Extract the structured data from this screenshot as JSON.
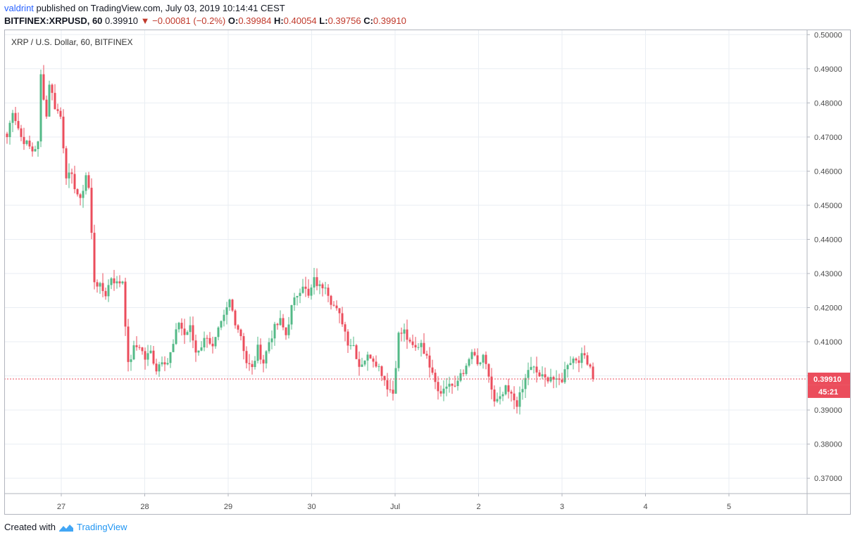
{
  "header": {
    "author": "valdrint",
    "published": "published on TradingView.com, July 03, 2019 10:14:41 CEST"
  },
  "ticker": {
    "symbol": "BITFINEX:XRPUSD, 60",
    "last": "0.39910",
    "change": "−0.00081 (−0.2%)",
    "o_label": "O:",
    "o": "0.39984",
    "h_label": "H:",
    "h": "0.40054",
    "l_label": "L:",
    "l": "0.39756",
    "c_label": "C:",
    "c": "0.39910"
  },
  "footer": {
    "created": "Created with",
    "brand": "TradingView"
  },
  "colors": {
    "up": "#53b987",
    "down": "#eb4d5c",
    "grid": "#e9eef3",
    "axis_text": "#4a4a4a",
    "price_tag": "#eb4d5c"
  },
  "chart_data": {
    "type": "candlestick",
    "title": "XRP / U.S. Dollar, 60, BITFINEX",
    "x_ticks": [
      "27",
      "28",
      "29",
      "30",
      "Jul",
      "2",
      "3",
      "4",
      "5"
    ],
    "y_ticks": [
      "0.37000",
      "0.38000",
      "0.39000",
      "0.40000",
      "0.41000",
      "0.42000",
      "0.43000",
      "0.44000",
      "0.45000",
      "0.46000",
      "0.47000",
      "0.48000",
      "0.49000",
      "0.50000"
    ],
    "ylim": [
      0.3655,
      0.5015
    ],
    "last_price": {
      "value": 0.3991,
      "label": "0.39910",
      "countdown": "45:21"
    },
    "grid": true,
    "anchors": [
      [
        0,
        0.47
      ],
      [
        2,
        0.478
      ],
      [
        5,
        0.47
      ],
      [
        7,
        0.468
      ],
      [
        9,
        0.466
      ],
      [
        11,
        0.468
      ],
      [
        12,
        0.488
      ],
      [
        14,
        0.476
      ],
      [
        15,
        0.486
      ],
      [
        17,
        0.479
      ],
      [
        19,
        0.476
      ],
      [
        21,
        0.459
      ],
      [
        23,
        0.458
      ],
      [
        26,
        0.451
      ],
      [
        28,
        0.459
      ],
      [
        29,
        0.455
      ],
      [
        31,
        0.428
      ],
      [
        33,
        0.426
      ],
      [
        35,
        0.424
      ],
      [
        37,
        0.429
      ],
      [
        39,
        0.427
      ],
      [
        41,
        0.428
      ],
      [
        43,
        0.403
      ],
      [
        45,
        0.408
      ],
      [
        47,
        0.409
      ],
      [
        49,
        0.405
      ],
      [
        51,
        0.407
      ],
      [
        53,
        0.402
      ],
      [
        55,
        0.405
      ],
      [
        57,
        0.404
      ],
      [
        59,
        0.409
      ],
      [
        61,
        0.416
      ],
      [
        63,
        0.412
      ],
      [
        65,
        0.414
      ],
      [
        67,
        0.407
      ],
      [
        69,
        0.409
      ],
      [
        71,
        0.412
      ],
      [
        73,
        0.408
      ],
      [
        75,
        0.413
      ],
      [
        77,
        0.417
      ],
      [
        79,
        0.422
      ],
      [
        81,
        0.416
      ],
      [
        83,
        0.412
      ],
      [
        85,
        0.404
      ],
      [
        87,
        0.402
      ],
      [
        89,
        0.408
      ],
      [
        91,
        0.404
      ],
      [
        93,
        0.41
      ],
      [
        95,
        0.414
      ],
      [
        97,
        0.416
      ],
      [
        99,
        0.412
      ],
      [
        101,
        0.42
      ],
      [
        103,
        0.424
      ],
      [
        105,
        0.427
      ],
      [
        107,
        0.423
      ],
      [
        109,
        0.428
      ],
      [
        111,
        0.426
      ],
      [
        113,
        0.427
      ],
      [
        115,
        0.422
      ],
      [
        117,
        0.419
      ],
      [
        119,
        0.416
      ],
      [
        121,
        0.41
      ],
      [
        123,
        0.409
      ],
      [
        125,
        0.403
      ],
      [
        127,
        0.405
      ],
      [
        129,
        0.406
      ],
      [
        131,
        0.404
      ],
      [
        133,
        0.401
      ],
      [
        135,
        0.397
      ],
      [
        137,
        0.395
      ],
      [
        139,
        0.412
      ],
      [
        141,
        0.413
      ],
      [
        143,
        0.409
      ],
      [
        145,
        0.408
      ],
      [
        147,
        0.41
      ],
      [
        149,
        0.405
      ],
      [
        151,
        0.402
      ],
      [
        153,
        0.396
      ],
      [
        155,
        0.396
      ],
      [
        157,
        0.398
      ],
      [
        159,
        0.396
      ],
      [
        161,
        0.401
      ],
      [
        163,
        0.402
      ],
      [
        165,
        0.407
      ],
      [
        167,
        0.403
      ],
      [
        169,
        0.405
      ],
      [
        171,
        0.4
      ],
      [
        173,
        0.392
      ],
      [
        175,
        0.393
      ],
      [
        177,
        0.396
      ],
      [
        179,
        0.394
      ],
      [
        181,
        0.392
      ],
      [
        183,
        0.396
      ],
      [
        185,
        0.402
      ],
      [
        187,
        0.402
      ],
      [
        189,
        0.4
      ],
      [
        191,
        0.399
      ],
      [
        193,
        0.4
      ],
      [
        195,
        0.398
      ],
      [
        197,
        0.399
      ],
      [
        199,
        0.404
      ],
      [
        201,
        0.405
      ],
      [
        203,
        0.405
      ],
      [
        205,
        0.406
      ],
      [
        207,
        0.403
      ],
      [
        208,
        0.3991
      ]
    ]
  }
}
